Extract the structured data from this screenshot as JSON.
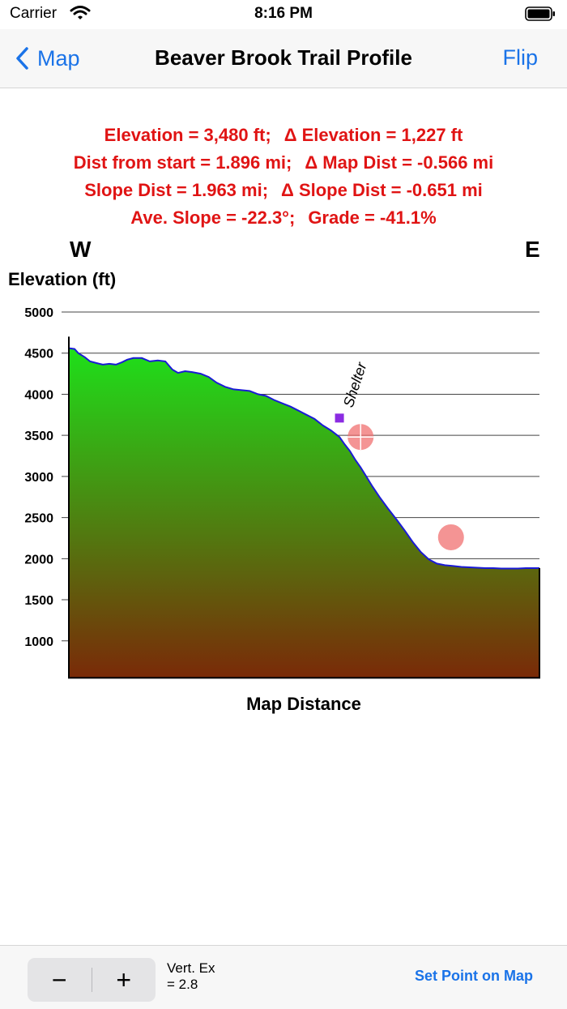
{
  "status_bar": {
    "carrier": "Carrier",
    "time": "8:16 PM"
  },
  "navbar": {
    "back_label": "Map",
    "title": "Beaver Brook Trail Profile",
    "flip_label": "Flip"
  },
  "stats": {
    "line1": [
      "Elevation = 3,480 ft;",
      "Δ Elevation = 1,227 ft"
    ],
    "line2": [
      "Dist from start = 1.896 mi;",
      "Δ Map Dist = -0.566 mi"
    ],
    "line3": [
      "Slope Dist = 1.963 mi;",
      "Δ Slope Dist = -0.651 mi"
    ],
    "line4": [
      "Ave. Slope = -22.3°;",
      "Grade = -41.1%"
    ]
  },
  "directions": {
    "west": "W",
    "east": "E"
  },
  "chart_data": {
    "type": "area",
    "ylabel": "Elevation (ft)",
    "xlabel": "Map Distance",
    "y_ticks": [
      "5000",
      "4500",
      "4000",
      "3500",
      "3000",
      "2500",
      "2000",
      "1500",
      "1000"
    ],
    "ylim": [
      550,
      5000
    ],
    "xlim": [
      0,
      1
    ],
    "grid": true,
    "colors": {
      "fill_top": "#1ee01a",
      "fill_bottom": "#7a2a08",
      "line": "#1a1ad6",
      "marker": "#f07070",
      "waypoint": "#8b2be2"
    },
    "profile": {
      "x": [
        0.0,
        0.012,
        0.02,
        0.034,
        0.045,
        0.058,
        0.072,
        0.086,
        0.1,
        0.113,
        0.124,
        0.137,
        0.155,
        0.172,
        0.189,
        0.205,
        0.22,
        0.232,
        0.247,
        0.262,
        0.28,
        0.297,
        0.314,
        0.332,
        0.35,
        0.367,
        0.384,
        0.402,
        0.419,
        0.436,
        0.453,
        0.471,
        0.488,
        0.505,
        0.522,
        0.54,
        0.557,
        0.575,
        0.586,
        0.597,
        0.609,
        0.62,
        0.632,
        0.645,
        0.66,
        0.678,
        0.697,
        0.714,
        0.731,
        0.748,
        0.765,
        0.782,
        0.799,
        0.817,
        0.834,
        0.851,
        0.868,
        0.885,
        0.902,
        0.919,
        0.937,
        0.954,
        0.971,
        0.988,
        1.0
      ],
      "y": [
        4560,
        4550,
        4500,
        4450,
        4400,
        4380,
        4360,
        4370,
        4360,
        4390,
        4420,
        4440,
        4440,
        4400,
        4410,
        4400,
        4300,
        4260,
        4280,
        4270,
        4250,
        4210,
        4140,
        4090,
        4060,
        4050,
        4040,
        4000,
        3980,
        3930,
        3890,
        3850,
        3800,
        3750,
        3700,
        3620,
        3560,
        3480,
        3390,
        3310,
        3200,
        3110,
        3000,
        2880,
        2750,
        2610,
        2470,
        2340,
        2200,
        2080,
        1990,
        1940,
        1920,
        1910,
        1900,
        1895,
        1890,
        1885,
        1885,
        1880,
        1880,
        1880,
        1885,
        1885,
        1885
      ]
    },
    "cursor": {
      "x": 0.62,
      "y": 3480
    },
    "end_marker": {
      "x": 0.812,
      "y": 2260
    },
    "waypoint": {
      "x": 0.575,
      "y": 3710,
      "label": "Shelter"
    }
  },
  "toolbar": {
    "minus": "−",
    "plus": "+",
    "vert_ex_label": "Vert. Ex",
    "vert_ex_value": "= 2.8",
    "set_point_label": "Set Point on Map"
  }
}
